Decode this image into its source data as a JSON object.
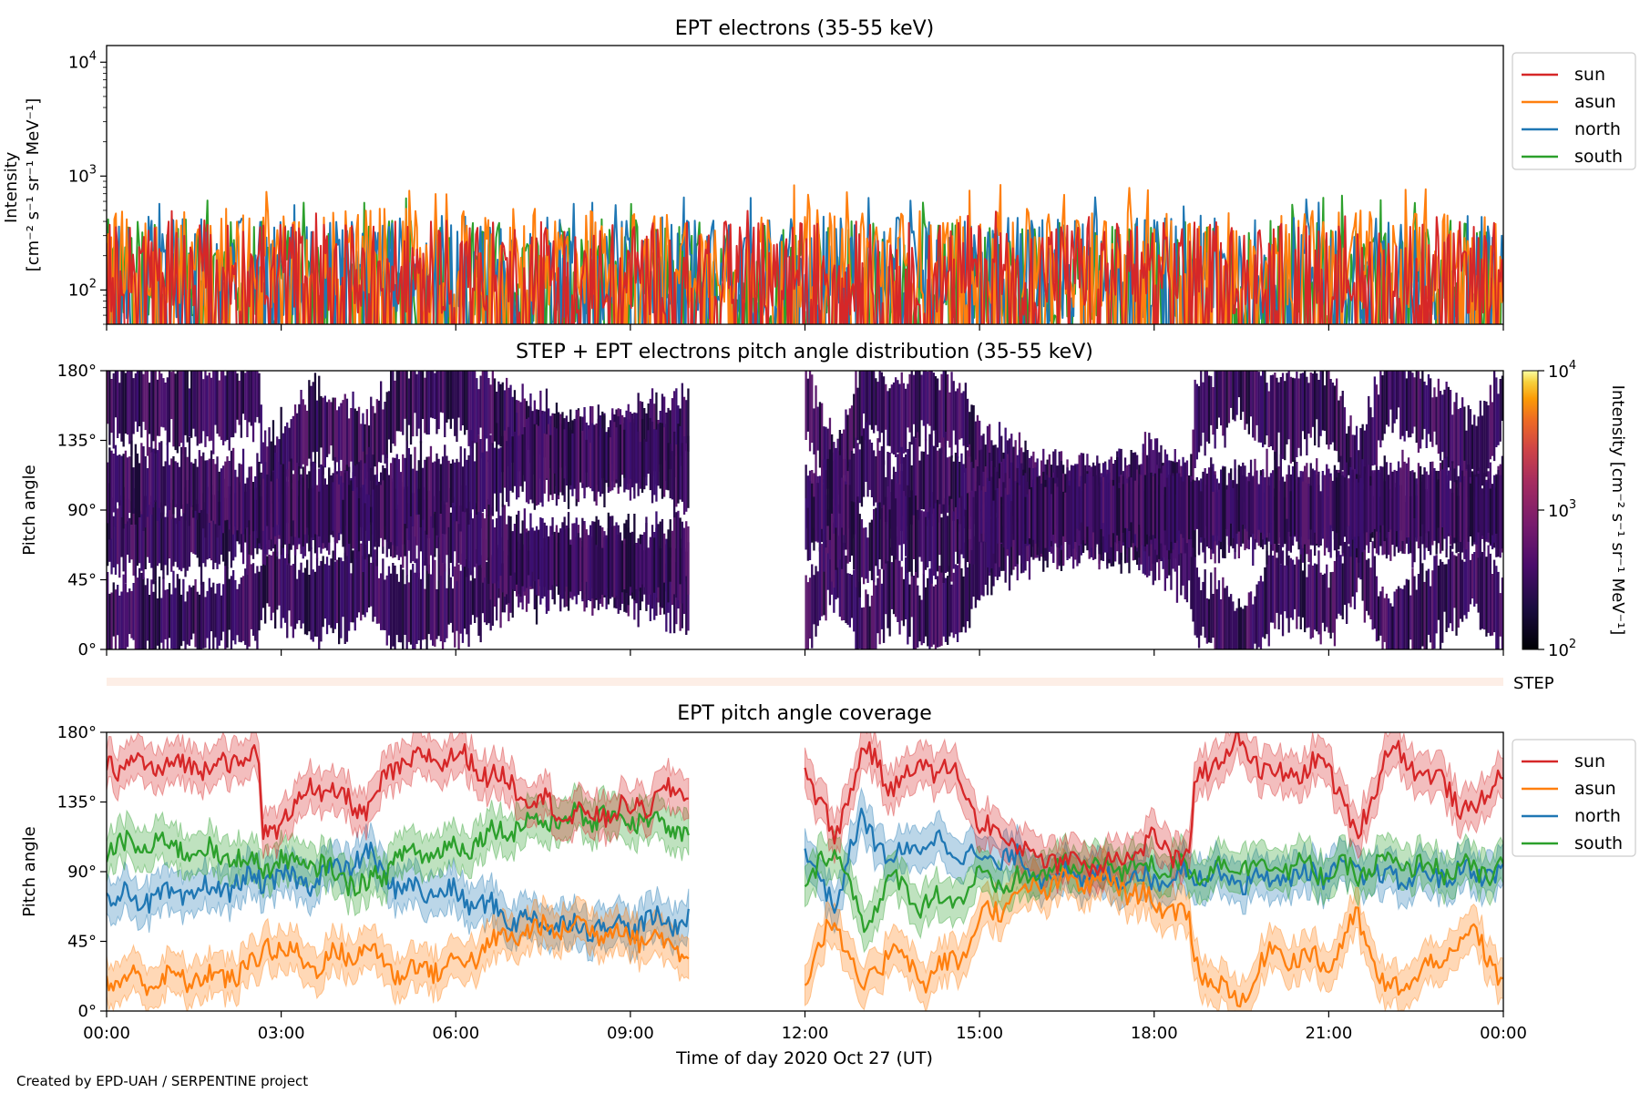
{
  "figure": {
    "credit": "Created by EPD-UAH / SERPENTINE project",
    "xlabel": "Time of day 2020 Oct 27 (UT)",
    "xticks": [
      "00:00",
      "03:00",
      "06:00",
      "09:00",
      "12:00",
      "15:00",
      "18:00",
      "21:00",
      "00:00"
    ],
    "colors": {
      "sun": "#d62728",
      "asun": "#ff7f0e",
      "north": "#1f77b4",
      "south": "#2ca02c",
      "step_band": "#fdeee6"
    }
  },
  "chart_data": [
    {
      "type": "line",
      "title": "EPT electrons (35-55 keV)",
      "ylabel_lines": [
        "Intensity",
        "[cm⁻² s⁻¹ sr⁻¹ MeV⁻¹]"
      ],
      "yscale": "log",
      "ylim": [
        50,
        14000
      ],
      "yticks": [
        "10^4",
        "10^3",
        "10^2"
      ],
      "x_range_hours": [
        0,
        24
      ],
      "legend": {
        "placement": "outside-top-right",
        "entries": [
          "sun",
          "asun",
          "north",
          "south"
        ]
      },
      "series": [
        {
          "name": "sun",
          "color": "#d62728",
          "median": 150,
          "low": 60,
          "high": 400,
          "peak": 500
        },
        {
          "name": "asun",
          "color": "#ff7f0e",
          "median": 190,
          "low": 70,
          "high": 520,
          "peak": 850
        },
        {
          "name": "north",
          "color": "#1f77b4",
          "median": 130,
          "low": 55,
          "high": 450,
          "peak": 660
        },
        {
          "name": "south",
          "color": "#2ca02c",
          "median": 120,
          "low": 50,
          "high": 420,
          "peak": 700
        }
      ]
    },
    {
      "type": "heatmap",
      "title": "STEP + EPT electrons pitch angle distribution (35-55 keV)",
      "ylabel": "Pitch angle",
      "ylim": [
        0,
        180
      ],
      "yticks": [
        "0°",
        "45°",
        "90°",
        "135°",
        "180°"
      ],
      "data_gap_hours": [
        10.0,
        12.0
      ],
      "colorbar": {
        "scale": "log",
        "range": [
          100,
          10000
        ],
        "ticks": [
          "10^2",
          "10^3",
          "10^4"
        ],
        "label": "Intensity [cm⁻² s⁻¹ sr⁻¹ MeV⁻¹]"
      },
      "step_label": "STEP"
    },
    {
      "type": "line",
      "title": "EPT pitch angle coverage",
      "ylabel": "Pitch angle",
      "ylim": [
        0,
        180
      ],
      "yticks": [
        "0°",
        "45°",
        "90°",
        "135°",
        "180°"
      ],
      "data_gap_hours": [
        10.0,
        12.0
      ],
      "band_half_width_deg": 13,
      "legend": {
        "placement": "outside-top-right",
        "entries": [
          "sun",
          "asun",
          "north",
          "south"
        ]
      },
      "series": [
        {
          "name": "sun",
          "color": "#d62728",
          "x": [
            0,
            1,
            2,
            2.6,
            2.7,
            3.5,
            4.5,
            5.0,
            6.0,
            7.0,
            8.0,
            9.0,
            10.0,
            12.0,
            12.5,
            13.0,
            13.5,
            14.0,
            14.7,
            15.0,
            15.5,
            16.0,
            17.0,
            17.5,
            18.0,
            18.6,
            18.7,
            19.5,
            20.0,
            21.0,
            21.5,
            22.0,
            23.0,
            23.5,
            24.0
          ],
          "y": [
            160,
            158,
            160,
            165,
            110,
            145,
            130,
            160,
            165,
            145,
            125,
            130,
            145,
            160,
            110,
            170,
            145,
            160,
            150,
            120,
            110,
            100,
            95,
            100,
            110,
            95,
            150,
            175,
            150,
            160,
            110,
            170,
            145,
            125,
            160
          ]
        },
        {
          "name": "asun",
          "color": "#ff7f0e",
          "x": [
            0,
            1,
            2,
            2.6,
            2.7,
            3.5,
            4.5,
            5.0,
            6.0,
            7.0,
            8.0,
            9.0,
            10.0,
            12.0,
            12.5,
            13.0,
            13.5,
            14.0,
            14.7,
            15.0,
            15.5,
            16.0,
            17.0,
            17.5,
            18.0,
            18.6,
            18.7,
            19.5,
            20.0,
            21.0,
            21.5,
            22.0,
            23.0,
            23.5,
            24.0
          ],
          "y": [
            20,
            20,
            22,
            30,
            45,
            30,
            40,
            25,
            30,
            50,
            55,
            50,
            40,
            20,
            60,
            10,
            45,
            20,
            35,
            60,
            70,
            80,
            85,
            80,
            70,
            60,
            30,
            5,
            40,
            30,
            60,
            10,
            35,
            50,
            20
          ]
        },
        {
          "name": "north",
          "color": "#1f77b4",
          "x": [
            0,
            1,
            2,
            2.6,
            2.7,
            3.5,
            4.5,
            5.0,
            6.0,
            7.0,
            8.0,
            9.0,
            10.0,
            12.0,
            12.5,
            13.0,
            13.5,
            14.0,
            14.7,
            15.0,
            15.5,
            16.0,
            17.0,
            17.5,
            18.0,
            18.6,
            18.7,
            19.5,
            20.0,
            21.0,
            21.5,
            22.0,
            23.0,
            23.5,
            24.0
          ],
          "y": [
            75,
            72,
            80,
            85,
            85,
            85,
            100,
            80,
            75,
            60,
            55,
            55,
            60,
            100,
            70,
            125,
            95,
            110,
            105,
            95,
            100,
            90,
            85,
            88,
            85,
            90,
            90,
            85,
            85,
            90,
            90,
            85,
            88,
            90,
            90
          ]
        },
        {
          "name": "south",
          "color": "#2ca02c",
          "x": [
            0,
            1,
            2,
            2.6,
            2.7,
            3.5,
            4.5,
            5.0,
            6.0,
            7.0,
            8.0,
            9.0,
            10.0,
            12.0,
            12.5,
            13.0,
            13.5,
            14.0,
            14.7,
            15.0,
            15.5,
            16.0,
            17.0,
            17.5,
            18.0,
            18.6,
            18.7,
            19.5,
            20.0,
            21.0,
            21.5,
            22.0,
            23.0,
            23.5,
            24.0
          ],
          "y": [
            105,
            108,
            100,
            95,
            95,
            95,
            80,
            100,
            105,
            120,
            125,
            125,
            115,
            75,
            110,
            55,
            85,
            70,
            75,
            85,
            80,
            90,
            95,
            92,
            95,
            90,
            90,
            95,
            95,
            90,
            90,
            95,
            92,
            90,
            90
          ]
        }
      ]
    }
  ]
}
